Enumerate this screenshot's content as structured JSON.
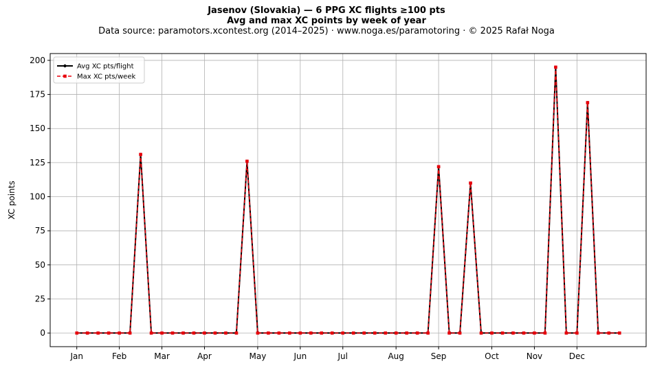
{
  "chart_data": {
    "type": "line",
    "title_line1": "Jasenov (Slovakia)  —  6 PPG XC flights ≥100 pts",
    "title_line2": "Avg and max XC points by week of year",
    "subtitle": "Data source: paramotors.xcontest.org (2014–2025)  ·  www.noga.es/paramotoring  ·  © 2025 Rafał Noga",
    "xlabel": "",
    "ylabel": "XC points",
    "ylim": [
      -10,
      205
    ],
    "xlim": [
      -1.5,
      54.5
    ],
    "grid": true,
    "legend_position": "top-left",
    "y_ticks": [
      0,
      25,
      50,
      75,
      100,
      125,
      150,
      175,
      200
    ],
    "x_ticks": [
      {
        "label": "Jan",
        "week": 1
      },
      {
        "label": "Feb",
        "week": 5
      },
      {
        "label": "Mar",
        "week": 9
      },
      {
        "label": "Apr",
        "week": 13
      },
      {
        "label": "May",
        "week": 18
      },
      {
        "label": "Jun",
        "week": 22
      },
      {
        "label": "Jul",
        "week": 26
      },
      {
        "label": "Aug",
        "week": 31
      },
      {
        "label": "Sep",
        "week": 35
      },
      {
        "label": "Oct",
        "week": 40
      },
      {
        "label": "Nov",
        "week": 44
      },
      {
        "label": "Dec",
        "week": 48
      }
    ],
    "x": [
      1,
      2,
      3,
      4,
      5,
      6,
      7,
      8,
      9,
      10,
      11,
      12,
      13,
      14,
      15,
      16,
      17,
      18,
      19,
      20,
      21,
      22,
      23,
      24,
      25,
      26,
      27,
      28,
      29,
      30,
      31,
      32,
      33,
      34,
      35,
      36,
      37,
      38,
      39,
      40,
      41,
      42,
      43,
      44,
      45,
      46,
      47,
      48,
      49,
      50,
      51,
      52
    ],
    "series": [
      {
        "name": "Avg XC pts/flight",
        "color": "#000000",
        "values": [
          0,
          0,
          0,
          0,
          0,
          0,
          131,
          0,
          0,
          0,
          0,
          0,
          0,
          0,
          0,
          0,
          126,
          0,
          0,
          0,
          0,
          0,
          0,
          0,
          0,
          0,
          0,
          0,
          0,
          0,
          0,
          0,
          0,
          0,
          122,
          0,
          0,
          110,
          0,
          0,
          0,
          0,
          0,
          0,
          0,
          195,
          0,
          0,
          169,
          0,
          0,
          0
        ]
      },
      {
        "name": "Max XC pts/week",
        "color": "#e8000b",
        "values": [
          0,
          0,
          0,
          0,
          0,
          0,
          131,
          0,
          0,
          0,
          0,
          0,
          0,
          0,
          0,
          0,
          126,
          0,
          0,
          0,
          0,
          0,
          0,
          0,
          0,
          0,
          0,
          0,
          0,
          0,
          0,
          0,
          0,
          0,
          122,
          0,
          0,
          110,
          0,
          0,
          0,
          0,
          0,
          0,
          0,
          195,
          0,
          0,
          169,
          0,
          0,
          0
        ]
      }
    ]
  }
}
